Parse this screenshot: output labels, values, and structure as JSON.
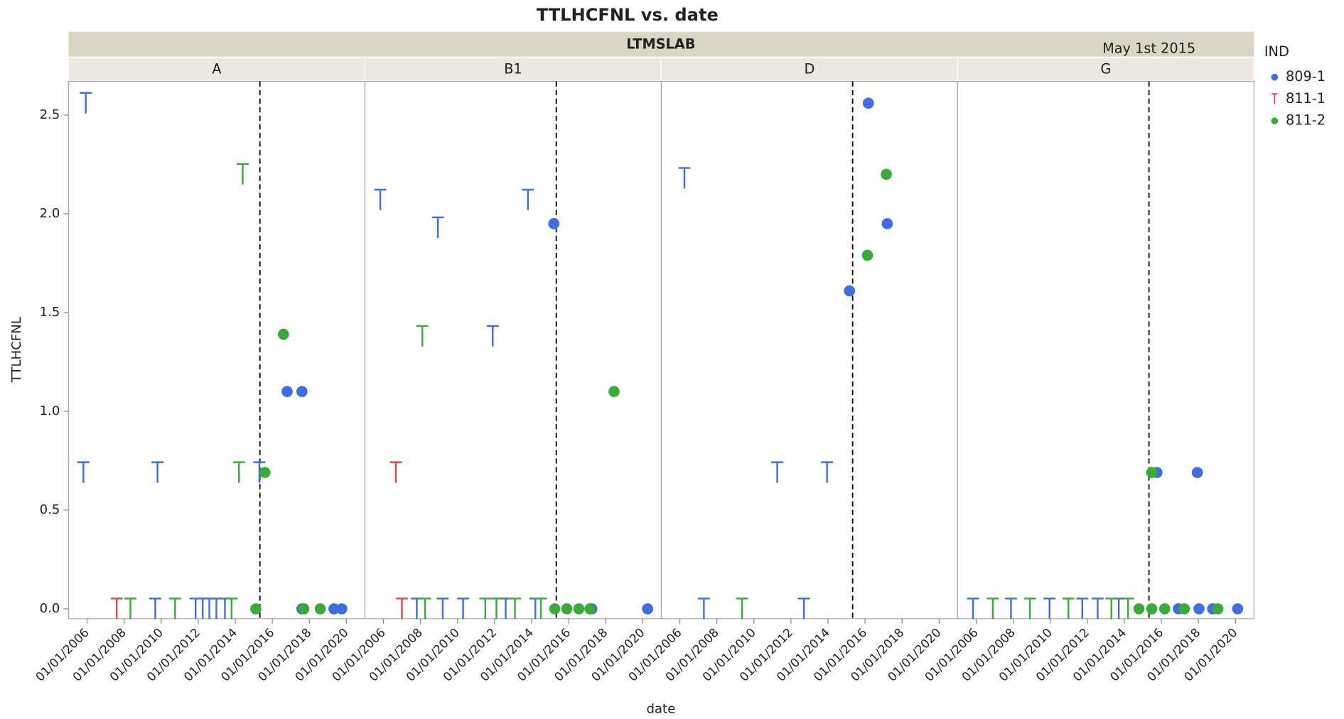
{
  "chart_data": {
    "type": "scatter",
    "title": "TTLHCFNL vs. date",
    "group_label": "LTMSLAB",
    "x_label": "date",
    "y_label": "TTLHCFNL",
    "xlim": [
      2005.0,
      2021.0
    ],
    "xticks": [
      {
        "value": 2006,
        "label": "01/01/2006"
      },
      {
        "value": 2008,
        "label": "01/01/2008"
      },
      {
        "value": 2010,
        "label": "01/01/2010"
      },
      {
        "value": 2012,
        "label": "01/01/2012"
      },
      {
        "value": 2014,
        "label": "01/01/2014"
      },
      {
        "value": 2016,
        "label": "01/01/2016"
      },
      {
        "value": 2018,
        "label": "01/01/2018"
      },
      {
        "value": 2020,
        "label": "01/01/2020"
      }
    ],
    "ylim": [
      -0.05,
      2.67
    ],
    "yticks": [
      {
        "value": 0,
        "label": "0.0"
      },
      0.5,
      {
        "value": 1,
        "label": "1.0"
      },
      1.5,
      {
        "value": 2,
        "label": "2.0"
      },
      2.5
    ],
    "reference_line": {
      "value": 2015.33,
      "label": "May 1st 2015"
    },
    "legend": {
      "title": "IND",
      "series": [
        {
          "name": "809-1",
          "color": "#3f6fdc",
          "marker": "o"
        },
        {
          "name": "811-1",
          "color": "#e0474c",
          "marker": "T"
        },
        {
          "name": "811-2",
          "color": "#3aaa3a",
          "marker": "o"
        }
      ]
    },
    "panels": [
      {
        "label": "A",
        "series": [
          {
            "x": [
              2005.93,
              2005.8,
              2009.8,
              2015.3,
              2016.8,
              2017.6,
              2009.68,
              2011.86,
              2012.24,
              2012.6,
              2012.98,
              2013.44,
              2017.6,
              2019.33,
              2019.75
            ],
            "values": [
              2.56,
              0.69,
              0.69,
              0.69,
              1.1,
              1.1,
              0,
              0,
              0,
              0,
              0,
              0,
              0,
              0,
              0
            ],
            "markers": [
              "T",
              "T",
              "T",
              "T",
              "o",
              "o",
              "T",
              "T",
              "T",
              "T",
              "T",
              "T",
              "o",
              "o",
              "o"
            ]
          },
          {
            "x": [
              2007.6
            ],
            "values": [
              0
            ],
            "markers": [
              "T"
            ]
          },
          {
            "x": [
              2014.4,
              2014.2,
              2015.6,
              2016.6,
              2008.34,
              2010.75,
              2013.8,
              2015.11,
              2017.7,
              2018.59
            ],
            "values": [
              2.2,
              0.69,
              0.69,
              1.39,
              0,
              0,
              0,
              0,
              0,
              0
            ],
            "markers": [
              "T",
              "T",
              "o",
              "o",
              "T",
              "T",
              "T",
              "o",
              "o",
              "o"
            ]
          }
        ]
      },
      {
        "label": "B1",
        "series": [
          {
            "x": [
              2005.83,
              2008.94,
              2013.8,
              2015.2,
              2011.9,
              2007.8,
              2009.2,
              2010.3,
              2012.6,
              2014.2,
              2017.25,
              2020.26
            ],
            "values": [
              2.07,
              1.93,
              2.07,
              1.95,
              1.38,
              0,
              0,
              0,
              0,
              0,
              0,
              0
            ],
            "markers": [
              "T",
              "T",
              "T",
              "o",
              "T",
              "T",
              "T",
              "T",
              "T",
              "T",
              "o",
              "o"
            ]
          },
          {
            "x": [
              2006.67,
              2007.0
            ],
            "values": [
              0.69,
              0
            ],
            "markers": [
              "T",
              "T"
            ]
          },
          {
            "x": [
              2008.1,
              2018.45,
              2008.25,
              2011.5,
              2012.1,
              2013.1,
              2014.5,
              2015.25,
              2015.9,
              2016.55,
              2017.15
            ],
            "values": [
              1.38,
              1.1,
              0,
              0,
              0,
              0,
              0,
              0,
              0,
              0,
              0
            ],
            "markers": [
              "T",
              "o",
              "T",
              "T",
              "T",
              "T",
              "T",
              "o",
              "o",
              "o",
              "o"
            ]
          }
        ]
      },
      {
        "label": "D",
        "series": [
          {
            "x": [
              2006.25,
              2016.18,
              2017.2,
              2015.16,
              2011.26,
              2013.95,
              2007.3,
              2012.7
            ],
            "values": [
              2.18,
              2.56,
              1.95,
              1.61,
              0.69,
              0.69,
              0,
              0
            ],
            "markers": [
              "T",
              "o",
              "o",
              "o",
              "T",
              "T",
              "T",
              "T"
            ]
          },
          {
            "x": [],
            "values": [],
            "markers": []
          },
          {
            "x": [
              2017.15,
              2016.13,
              2009.36
            ],
            "values": [
              2.2,
              1.79,
              0
            ],
            "markers": [
              "o",
              "o",
              "T"
            ]
          }
        ]
      },
      {
        "label": "G",
        "series": [
          {
            "x": [
              2015.76,
              2017.94,
              2005.83,
              2007.88,
              2009.96,
              2011.73,
              2012.56,
              2013.7,
              2016.92,
              2018.03,
              2018.77,
              2020.12
            ],
            "values": [
              0.69,
              0.69,
              0,
              0,
              0,
              0,
              0,
              0,
              0,
              0,
              0,
              0
            ],
            "markers": [
              "o",
              "o",
              "T",
              "T",
              "T",
              "T",
              "T",
              "T",
              "o",
              "o",
              "o",
              "o"
            ]
          },
          {
            "x": [],
            "values": [],
            "markers": []
          },
          {
            "x": [
              2015.48,
              2006.9,
              2008.9,
              2010.98,
              2013.3,
              2014.2,
              2014.79,
              2015.48,
              2016.18,
              2017.24,
              2019.05
            ],
            "values": [
              0.69,
              0,
              0,
              0,
              0,
              0,
              0,
              0,
              0,
              0,
              0
            ],
            "markers": [
              "o",
              "T",
              "T",
              "T",
              "T",
              "T",
              "o",
              "o",
              "o",
              "o",
              "o"
            ]
          }
        ]
      }
    ]
  }
}
